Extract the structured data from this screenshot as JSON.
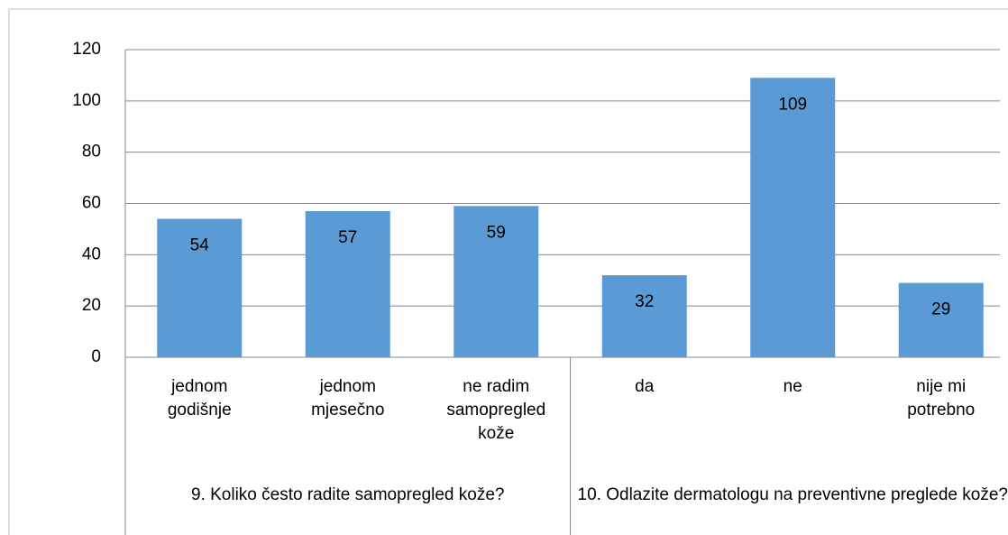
{
  "chart_data": {
    "type": "bar",
    "categories": [
      "jednom godišnje",
      "jednom mjesečno",
      "ne radim samopregled kože",
      "da",
      "ne",
      "nije mi potrebno"
    ],
    "groups": [
      {
        "label": "9. Koliko često radite samopregled kože?",
        "size": 3
      },
      {
        "label": "10. Odlazite dermatologu na preventivne preglede kože?",
        "size": 3
      }
    ],
    "values": [
      54,
      57,
      59,
      32,
      109,
      29
    ],
    "color": "#5b9bd5",
    "ylim": [
      0,
      120
    ],
    "yticks": [
      0,
      20,
      40,
      60,
      80,
      100,
      120
    ],
    "grid": true
  }
}
